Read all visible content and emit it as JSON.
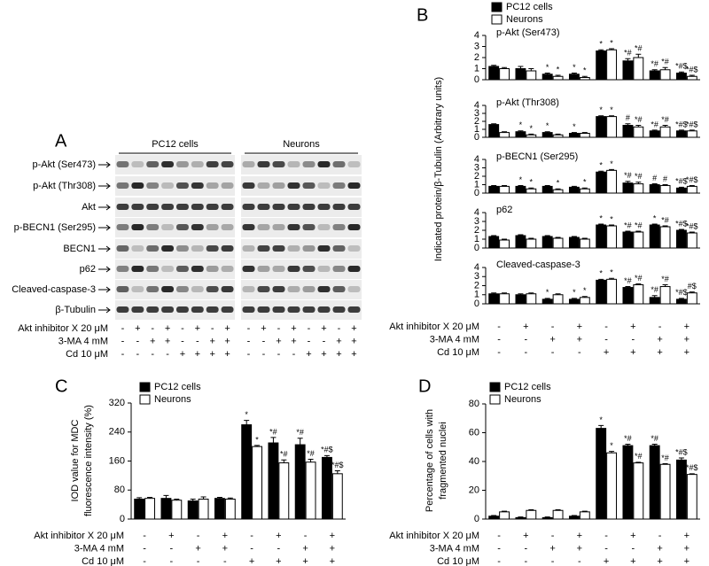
{
  "panel_a": {
    "letter": "A",
    "groups": [
      "PC12 cells",
      "Neurons"
    ],
    "rows": [
      "p-Akt (Ser473)",
      "p-Akt (Thr308)",
      "Akt",
      "p-BECN1 (Ser295)",
      "BECN1",
      "p62",
      "Cleaved-caspase-3",
      "β-Tubulin"
    ],
    "conditions": [
      {
        "label": "Akt inhibitor X 20 μM",
        "signs": [
          "-",
          "+",
          "-",
          "+",
          "-",
          "+",
          "-",
          "+",
          "-",
          "+",
          "-",
          "+",
          "-",
          "+",
          "-",
          "+"
        ]
      },
      {
        "label": "3-MA 4 mM",
        "signs": [
          "-",
          "-",
          "+",
          "+",
          "-",
          "-",
          "+",
          "+",
          "-",
          "-",
          "+",
          "+",
          "-",
          "-",
          "+",
          "+"
        ]
      },
      {
        "label": "Cd 10 μM",
        "signs": [
          "-",
          "-",
          "-",
          "-",
          "+",
          "+",
          "+",
          "+",
          "-",
          "-",
          "-",
          "-",
          "+",
          "+",
          "+",
          "+"
        ]
      }
    ]
  },
  "chart_data": [
    {
      "type": "bar",
      "panel": "B",
      "ylabel": [
        "Indicated protein/β-Tubulin (Arbitrary units)"
      ],
      "title": "p-Akt (Ser473)",
      "ylim": [
        0,
        4
      ],
      "yticks": [
        0,
        1,
        2,
        3,
        4
      ],
      "series": [
        {
          "name": "PC12 cells",
          "color": "#000000",
          "values": [
            1.2,
            1.0,
            0.5,
            0.5,
            2.6,
            1.7,
            0.8,
            0.6
          ],
          "errors": [
            0.1,
            0.2,
            0.1,
            0.1,
            0.1,
            0.2,
            0.1,
            0.1
          ],
          "annotations": [
            null,
            null,
            "*",
            "*",
            "*",
            "*#",
            "*#",
            "*#$"
          ]
        },
        {
          "name": "Neurons",
          "color": "#ffffff",
          "values": [
            1.0,
            0.8,
            0.3,
            0.2,
            2.7,
            2.0,
            0.9,
            0.3
          ],
          "errors": [
            0.1,
            0.2,
            0.1,
            0.1,
            0.1,
            0.3,
            0.2,
            0.1
          ],
          "annotations": [
            null,
            null,
            "*",
            "*",
            "*",
            "*#",
            "*#",
            "*#$"
          ]
        }
      ]
    },
    {
      "type": "bar",
      "title": "p-Akt (Thr308)",
      "ylim": [
        0,
        4
      ],
      "yticks": [
        0,
        1,
        2,
        3,
        4
      ],
      "series": [
        {
          "color": "#000000",
          "values": [
            1.6,
            0.7,
            0.6,
            0.5,
            2.6,
            1.5,
            0.8,
            0.8
          ],
          "errors": [
            0.1,
            0.1,
            0.1,
            0.1,
            0.1,
            0.2,
            0.1,
            0.1
          ],
          "annotations": [
            null,
            "*",
            "*",
            "*",
            "*",
            "#",
            "*#",
            "*#$"
          ]
        },
        {
          "color": "#ffffff",
          "values": [
            0.6,
            0.3,
            0.3,
            0.5,
            2.6,
            1.3,
            1.3,
            0.8
          ],
          "errors": [
            0.1,
            0.1,
            0.1,
            0.1,
            0.1,
            0.2,
            0.2,
            0.1
          ],
          "annotations": [
            null,
            "*",
            null,
            null,
            "*",
            "*#",
            "*#",
            "*#$"
          ]
        }
      ]
    },
    {
      "type": "bar",
      "title": "p-BECN1 (Ser295)",
      "ylim": [
        0,
        4
      ],
      "yticks": [
        0,
        1,
        2,
        3,
        4
      ],
      "series": [
        {
          "color": "#000000",
          "values": [
            0.8,
            0.8,
            0.8,
            0.7,
            2.5,
            1.2,
            1.0,
            0.6
          ],
          "errors": [
            0.1,
            0.1,
            0.1,
            0.1,
            0.1,
            0.2,
            0.1,
            0.1
          ],
          "annotations": [
            null,
            "*",
            null,
            null,
            "*",
            "*#",
            "#",
            "*#$"
          ]
        },
        {
          "color": "#ffffff",
          "values": [
            0.8,
            0.5,
            0.4,
            0.5,
            2.7,
            1.1,
            0.9,
            0.8
          ],
          "errors": [
            0.1,
            0.1,
            0.1,
            0.1,
            0.1,
            0.2,
            0.1,
            0.1
          ],
          "annotations": [
            null,
            "*",
            "*",
            "*",
            "*",
            "*#",
            "#",
            "*#$"
          ]
        }
      ]
    },
    {
      "type": "bar",
      "title": "p62",
      "ylim": [
        0,
        4
      ],
      "yticks": [
        0,
        1,
        2,
        3,
        4
      ],
      "series": [
        {
          "color": "#000000",
          "values": [
            1.3,
            1.4,
            1.3,
            1.2,
            2.6,
            1.8,
            2.6,
            2.0
          ],
          "errors": [
            0.1,
            0.1,
            0.1,
            0.1,
            0.1,
            0.1,
            0.1,
            0.1
          ],
          "annotations": [
            null,
            null,
            null,
            null,
            "*",
            "*#",
            "*",
            "*#$"
          ]
        },
        {
          "color": "#ffffff",
          "values": [
            0.9,
            1.0,
            1.1,
            1.0,
            2.5,
            1.8,
            2.4,
            1.7
          ],
          "errors": [
            0.1,
            0.1,
            0.1,
            0.1,
            0.1,
            0.1,
            0.1,
            0.1
          ],
          "annotations": [
            null,
            null,
            null,
            null,
            "*",
            "*#",
            "*#",
            "*#$"
          ]
        }
      ]
    },
    {
      "type": "bar",
      "title": "Cleaved-caspase-3",
      "ylim": [
        0,
        4
      ],
      "yticks": [
        0,
        1,
        2,
        3,
        4
      ],
      "series": [
        {
          "color": "#000000",
          "values": [
            1.1,
            1.0,
            0.5,
            0.5,
            2.6,
            1.8,
            0.7,
            0.5
          ],
          "errors": [
            0.1,
            0.1,
            0.1,
            0.1,
            0.1,
            0.1,
            0.2,
            0.1
          ],
          "annotations": [
            null,
            null,
            "*",
            "*",
            "*",
            "*#",
            "*#",
            "*#$"
          ]
        },
        {
          "color": "#ffffff",
          "values": [
            1.1,
            1.1,
            1.0,
            0.7,
            2.7,
            2.1,
            1.9,
            1.2
          ],
          "errors": [
            0.1,
            0.1,
            0.1,
            0.1,
            0.1,
            0.1,
            0.2,
            0.1
          ],
          "annotations": [
            null,
            null,
            null,
            "*",
            "*",
            "*#",
            "*#",
            "#$"
          ]
        }
      ],
      "conditions": [
        {
          "label": "Akt inhibitor X 20 μM",
          "signs": [
            "-",
            "+",
            "-",
            "+",
            "-",
            "+",
            "-",
            "+"
          ]
        },
        {
          "label": "3-MA 4 mM",
          "signs": [
            "-",
            "-",
            "+",
            "+",
            "-",
            "-",
            "+",
            "+"
          ]
        },
        {
          "label": "Cd 10 μM",
          "signs": [
            "-",
            "-",
            "-",
            "-",
            "+",
            "+",
            "+",
            "+"
          ]
        }
      ]
    },
    {
      "type": "bar",
      "panel": "C",
      "ylabel": [
        "IOD value for MDC",
        "fluorescence intensity (%)"
      ],
      "ylim": [
        0,
        320
      ],
      "yticks": [
        0,
        80,
        160,
        240,
        320
      ],
      "series": [
        {
          "name": "PC12 cells",
          "color": "#000000",
          "values": [
            55,
            57,
            50,
            57,
            260,
            210,
            205,
            170
          ],
          "errors": [
            4,
            8,
            5,
            3,
            12,
            15,
            18,
            5
          ],
          "annotations": [
            null,
            null,
            null,
            null,
            "*",
            "*#",
            "*#",
            "*#$"
          ]
        },
        {
          "name": "Neurons",
          "color": "#ffffff",
          "values": [
            57,
            52,
            55,
            55,
            200,
            155,
            157,
            125
          ],
          "errors": [
            3,
            3,
            6,
            3,
            3,
            8,
            8,
            8
          ],
          "annotations": [
            null,
            null,
            null,
            null,
            "*",
            "*#",
            "*#",
            "*#$"
          ]
        }
      ],
      "conditions": [
        {
          "label": "Akt inhibitor X 20 μM",
          "signs": [
            "-",
            "+",
            "-",
            "+",
            "-",
            "+",
            "-",
            "+"
          ]
        },
        {
          "label": "3-MA 4 mM",
          "signs": [
            "-",
            "-",
            "+",
            "+",
            "-",
            "-",
            "+",
            "+"
          ]
        },
        {
          "label": "Cd 10 μM",
          "signs": [
            "-",
            "-",
            "-",
            "-",
            "+",
            "+",
            "+",
            "+"
          ]
        }
      ]
    },
    {
      "type": "bar",
      "panel": "D",
      "ylabel": [
        "Percentage of cells with",
        "fragmented nuclei"
      ],
      "ylim": [
        0,
        80
      ],
      "yticks": [
        0,
        20,
        40,
        60,
        80
      ],
      "series": [
        {
          "name": "PC12 cells",
          "color": "#000000",
          "values": [
            2,
            1,
            1,
            2,
            63,
            51,
            51,
            41
          ],
          "errors": [
            0.5,
            0.5,
            0.5,
            0.5,
            2,
            1,
            1,
            1.5
          ],
          "annotations": [
            null,
            null,
            null,
            null,
            "*",
            "*#",
            "*#",
            "*#$"
          ]
        },
        {
          "name": "Neurons",
          "color": "#ffffff",
          "values": [
            5,
            6,
            6,
            5,
            46,
            39,
            38,
            31
          ],
          "errors": [
            0.5,
            0.5,
            0.5,
            0.5,
            1,
            0.5,
            0.5,
            0.5
          ],
          "annotations": [
            null,
            null,
            null,
            null,
            "*",
            "*#",
            "*#",
            "*#$"
          ]
        }
      ],
      "conditions": [
        {
          "label": "Akt inhibitor X 20 μM",
          "signs": [
            "-",
            "+",
            "-",
            "+",
            "-",
            "+",
            "-",
            "+"
          ]
        },
        {
          "label": "3-MA 4 mM",
          "signs": [
            "-",
            "-",
            "+",
            "+",
            "-",
            "-",
            "+",
            "+"
          ]
        },
        {
          "label": "Cd 10 μM",
          "signs": [
            "-",
            "-",
            "-",
            "-",
            "+",
            "+",
            "+",
            "+"
          ]
        }
      ]
    }
  ]
}
